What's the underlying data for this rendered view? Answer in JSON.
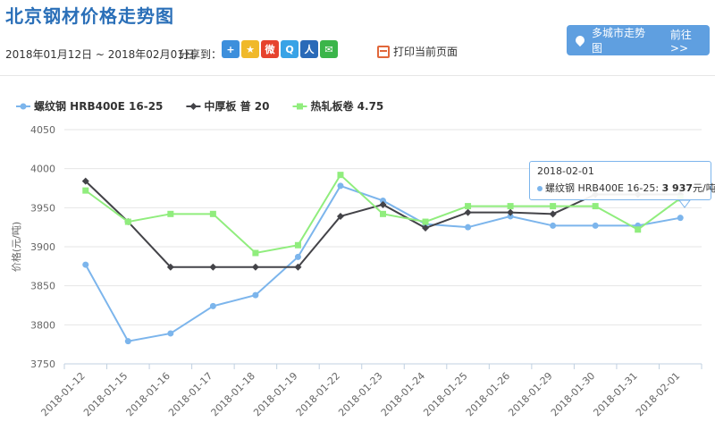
{
  "page": {
    "title": "北京钢材价格走势图",
    "date_range": "2018年01月12日 ~ 2018年02月01日",
    "share_label": "分享到：",
    "share_icons": [
      {
        "name": "plus-share-icon",
        "glyph": "+",
        "color": "#3d8fdc"
      },
      {
        "name": "qzone-icon",
        "glyph": "★",
        "color": "#f0b92b"
      },
      {
        "name": "weibo-icon",
        "glyph": "微",
        "color": "#e6432d"
      },
      {
        "name": "tencent-weibo-icon",
        "glyph": "Q",
        "color": "#38a3e6"
      },
      {
        "name": "renren-icon",
        "glyph": "人",
        "color": "#2a6ab8"
      },
      {
        "name": "wechat-icon",
        "glyph": "✉",
        "color": "#3bb54a"
      }
    ],
    "print_label": "打印当前页面",
    "multi_city_label": "多城市走势图",
    "multi_city_more": "前往>>"
  },
  "chart_data": {
    "type": "line",
    "ylabel": "价格(元/吨)",
    "ylim": [
      3750,
      4050
    ],
    "yticks": [
      3750,
      3800,
      3850,
      3900,
      3950,
      4000,
      4050
    ],
    "grid": true,
    "legend_position": "top-left",
    "categories": [
      "2018-01-12",
      "2018-01-15",
      "2018-01-16",
      "2018-01-17",
      "2018-01-18",
      "2018-01-19",
      "2018-01-22",
      "2018-01-23",
      "2018-01-24",
      "2018-01-25",
      "2018-01-26",
      "2018-01-29",
      "2018-01-30",
      "2018-01-31",
      "2018-02-01"
    ],
    "series": [
      {
        "name": "螺纹钢 HRB400E 16-25",
        "color": "#7cb5ec",
        "marker": "circle",
        "values": [
          3877,
          3779,
          3789,
          3824,
          3838,
          3887,
          3978,
          3959,
          3929,
          3925,
          3939,
          3927,
          3927,
          3927,
          3937
        ]
      },
      {
        "name": "中厚板 普 20",
        "color": "#434348",
        "marker": "diamond",
        "values": [
          3984,
          3932,
          3874,
          3874,
          3874,
          3874,
          3939,
          3954,
          3924,
          3944,
          3944,
          3942,
          3967,
          3967,
          3967
        ]
      },
      {
        "name": "热轧板卷 4.75",
        "color": "#90ed7d",
        "marker": "square",
        "values": [
          3972,
          3932,
          3942,
          3942,
          3892,
          3902,
          3992,
          3942,
          3932,
          3952,
          3952,
          3952,
          3952,
          3922,
          3962
        ]
      }
    ]
  },
  "tooltip": {
    "date": "2018-02-01",
    "series": "螺纹钢 HRB400E 16-25: ",
    "value": "3 937",
    "unit": "元/吨",
    "color": "#7cb5ec"
  }
}
